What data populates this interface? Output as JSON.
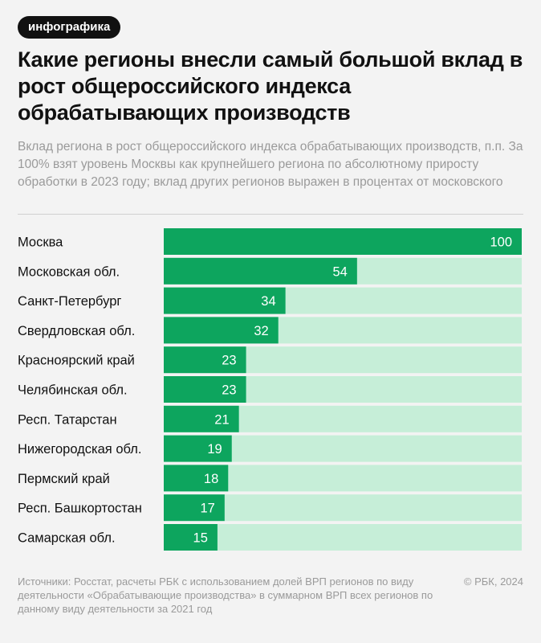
{
  "badge": "инфографика",
  "title": "Какие регионы внесли самый большой вклад в рост общероссийского индекса обрабатывающих производств",
  "subtitle": "Вклад региона в рост общероссийского индекса обрабатывающих производств, п.п. За 100% взят уровень Москвы как крупнейшего региона по абсолютному приросту обработки в 2023 году; вклад других регионов выражен в процентах от московского",
  "footer": {
    "source": "Источники: Росстат, расчеты РБК с использованием долей ВРП регионов по виду деятельности «Обрабатывающие производства» в суммарном ВРП всех регионов по данному виду деятельности за 2021 год",
    "copyright": "© РБК, 2024"
  },
  "colors": {
    "bar": "#0da55e",
    "track": "#c6eed8",
    "label": "#111111",
    "value_text": "#ffffff"
  },
  "chart_data": {
    "type": "bar",
    "orientation": "horizontal",
    "categories": [
      "Москва",
      "Московская обл.",
      "Санкт-Петербург",
      "Свердловская обл.",
      "Красноярский край",
      "Челябинская обл.",
      "Респ. Татарстан",
      "Нижегородская обл.",
      "Пермский край",
      "Респ. Башкортостан",
      "Самарская обл."
    ],
    "values": [
      100,
      54,
      34,
      32,
      23,
      23,
      21,
      19,
      18,
      17,
      15
    ],
    "xlim": [
      0,
      100
    ],
    "grid": false,
    "legend": "none"
  }
}
